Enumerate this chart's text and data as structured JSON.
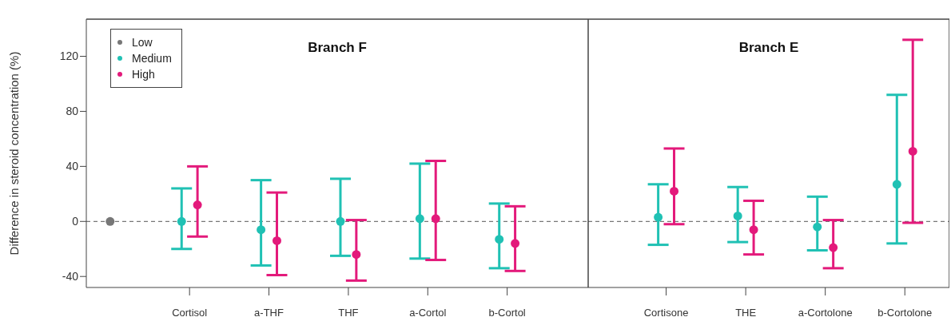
{
  "chart_data": [
    {
      "type": "scatter",
      "title": "Branch F",
      "ylabel": "Difference in steroid concentration (%)",
      "categories": [
        null,
        "Cortisol",
        "a-THF",
        "THF",
        "a-Cortol",
        "b-Cortol"
      ],
      "series": [
        {
          "name": "Low",
          "color": "#777777",
          "values": [
            0,
            null,
            null,
            null,
            null,
            null
          ]
        },
        {
          "name": "Medium",
          "color": "#20c1b4",
          "values": [
            null,
            0,
            -6,
            0,
            2,
            -13
          ],
          "errors": [
            null,
            [
              -20,
              24
            ],
            [
              -32,
              30
            ],
            [
              -25,
              31
            ],
            [
              -27,
              42
            ],
            [
              -34,
              13
            ]
          ]
        },
        {
          "name": "High",
          "color": "#e31a7b",
          "values": [
            null,
            12,
            -14,
            -24,
            2,
            -16
          ],
          "errors": [
            null,
            [
              -11,
              40
            ],
            [
              -39,
              21
            ],
            [
              -43,
              1
            ],
            [
              -28,
              44
            ],
            [
              -36,
              11
            ]
          ]
        }
      ],
      "ylim": [
        -48,
        147
      ],
      "yticks": [
        -40,
        0,
        40,
        80,
        120
      ],
      "grid": false,
      "legend": "top left",
      "marker": "circle",
      "ref_lines": [
        {
          "axis": "y",
          "value": 0,
          "color": "#777777",
          "line_style": "dashed"
        }
      ]
    },
    {
      "type": "scatter",
      "title": "Branch E",
      "categories": [
        "Cortisone",
        "THE",
        "a-Cortolone",
        "b-Cortolone"
      ],
      "series": [
        {
          "color": "#20c1b4",
          "values": [
            3,
            4,
            -4,
            27
          ],
          "errors": [
            [
              -17,
              27
            ],
            [
              -15,
              25
            ],
            [
              -21,
              18
            ],
            [
              -16,
              92
            ]
          ]
        },
        {
          "color": "#e31a7b",
          "values": [
            22,
            -6,
            -19,
            51
          ],
          "errors": [
            [
              -2,
              53
            ],
            [
              -24,
              15
            ],
            [
              -34,
              1
            ],
            [
              -1,
              132
            ]
          ]
        }
      ],
      "ylim": [
        -48,
        147
      ],
      "yticks": [
        -40,
        0,
        40,
        80,
        120
      ],
      "grid": false,
      "legend": false,
      "marker": "circle",
      "tick_labels": "x",
      "ref_lines": [
        {
          "axis": "y",
          "value": 0,
          "color": "#777777",
          "line_style": "dashed"
        }
      ]
    }
  ]
}
